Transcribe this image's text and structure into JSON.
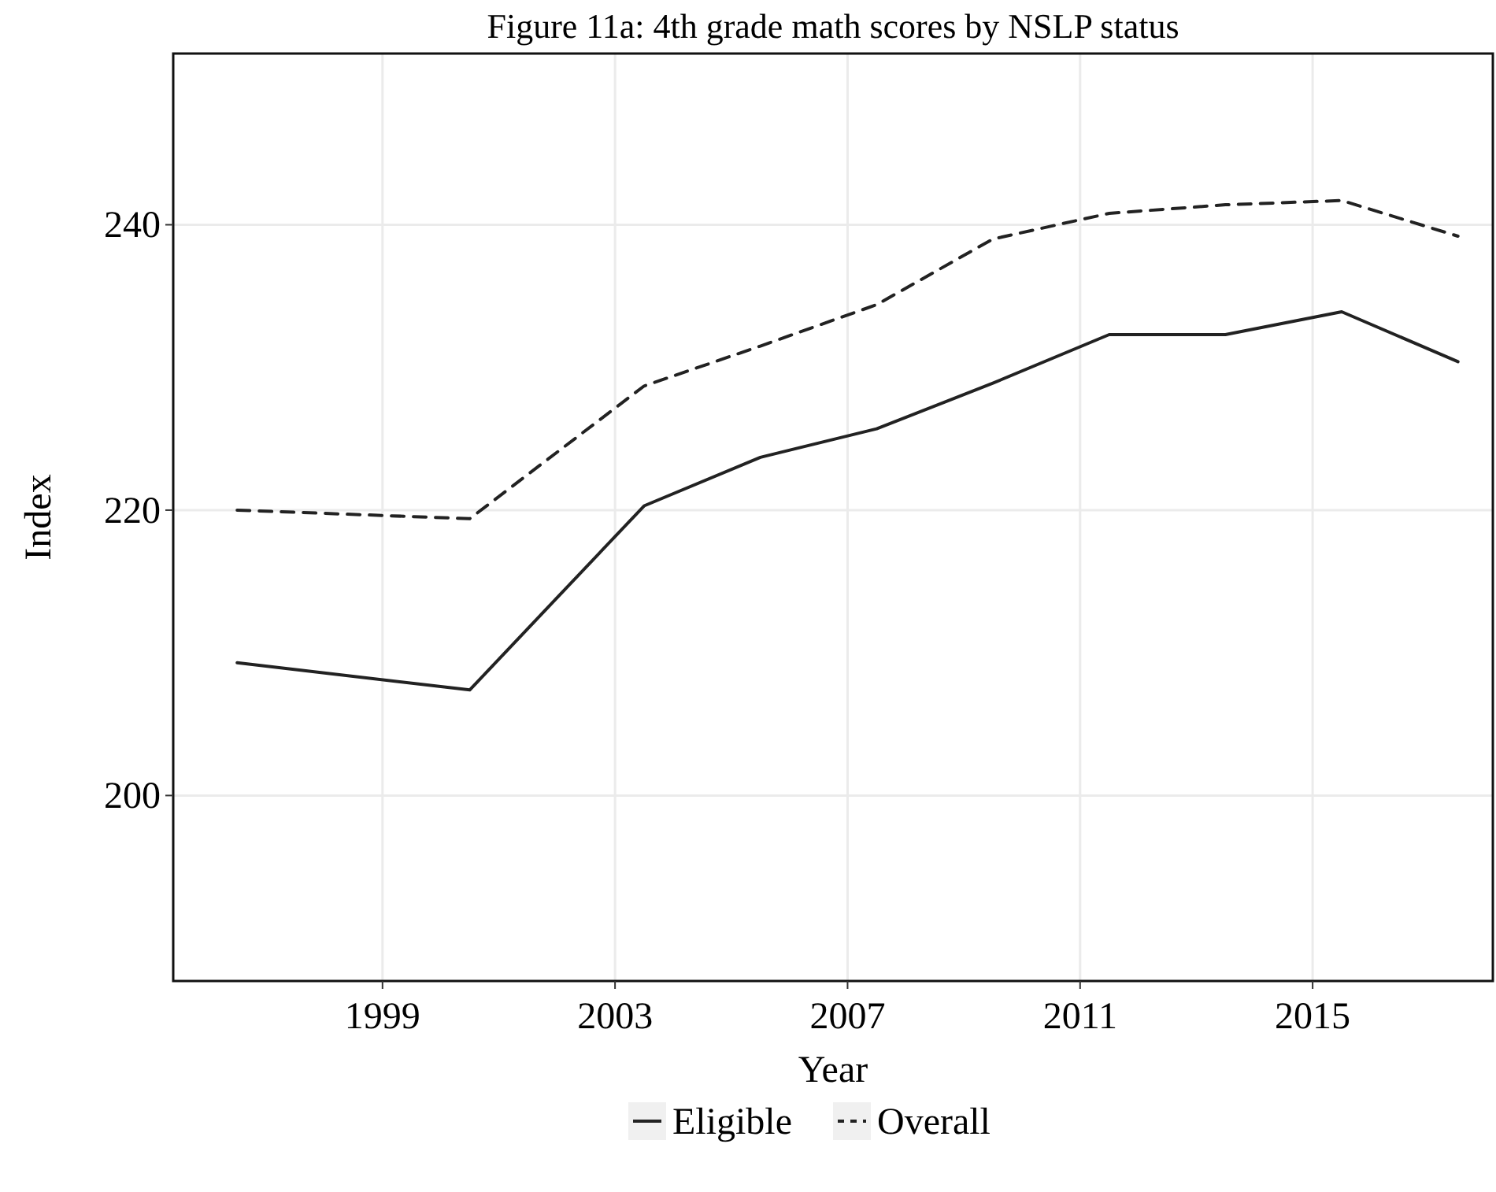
{
  "chart_data": {
    "type": "line",
    "title": "Figure 11a: 4th grade math scores by NSLP status",
    "xlabel": "Year",
    "ylabel": "Index",
    "x": [
      1996.5,
      2000.5,
      2003.5,
      2005.5,
      2007.5,
      2009.5,
      2011.5,
      2013.5,
      2015.5,
      2017.5
    ],
    "series": [
      {
        "name": "Eligible",
        "color": "#222222",
        "line_style": "solid",
        "values": [
          209.3,
          207.4,
          220.3,
          223.7,
          225.7,
          228.9,
          232.3,
          232.3,
          233.9,
          230.4
        ]
      },
      {
        "name": "Overall",
        "color": "#222222",
        "line_style": "dashed",
        "values": [
          220,
          219.4,
          228.7,
          231.5,
          234.4,
          239,
          240.8,
          241.4,
          241.7,
          239.2
        ]
      }
    ],
    "xlim": [
      1995.4,
      2018.1
    ],
    "xticks": [
      1999,
      2003,
      2007,
      2011,
      2015
    ],
    "ylim": [
      187,
      252
    ],
    "yticks": [
      200,
      220,
      240
    ],
    "grid": true,
    "legend": "bottom",
    "marker": "none"
  }
}
